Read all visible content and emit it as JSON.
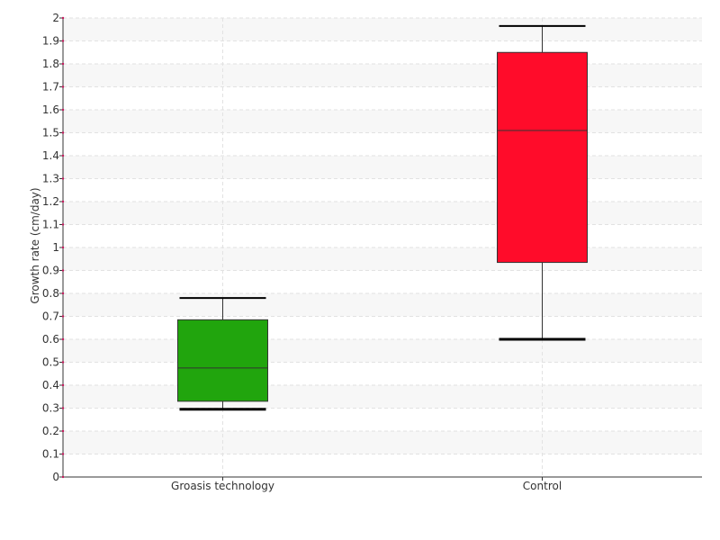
{
  "chart_data": {
    "type": "boxplot",
    "title": "",
    "xlabel": "",
    "ylabel": "Growth rate (cm/day)",
    "ylim": [
      0,
      2
    ],
    "ytick_step": 0.1,
    "yticks": [
      "0",
      "0.1",
      "0.2",
      "0.3",
      "0.4",
      "0.5",
      "0.6",
      "0.7",
      "0.8",
      "0.9",
      "1",
      "1.1",
      "1.2",
      "1.3",
      "1.4",
      "1.5",
      "1.6",
      "1.7",
      "1.8",
      "1.9",
      "2"
    ],
    "grid": true,
    "categories": [
      "Groasis technology",
      "Control"
    ],
    "series": [
      {
        "whisker_low": 0.295,
        "q1": 0.33,
        "median": 0.475,
        "q3": 0.685,
        "whisker_high": 0.78,
        "color": "#21a50d"
      },
      {
        "whisker_low": 0.6,
        "q1": 0.935,
        "median": 1.51,
        "q3": 1.85,
        "whisker_high": 1.965,
        "color": "#ff0c2a"
      }
    ]
  }
}
